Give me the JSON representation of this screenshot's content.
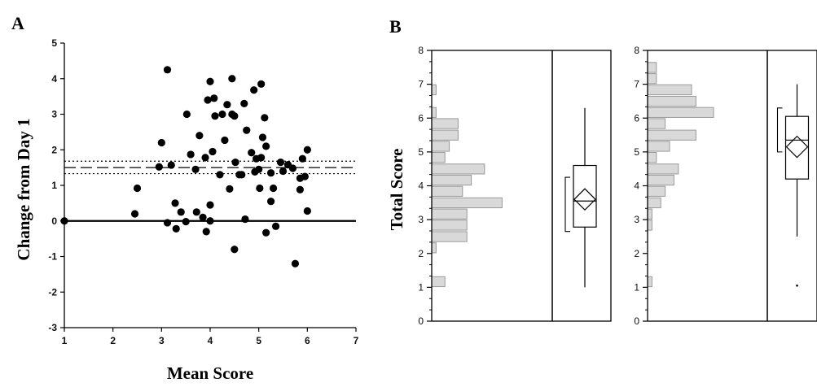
{
  "panel_labels": {
    "a": "A",
    "b": "B"
  },
  "chart_data": [
    {
      "type": "scatter",
      "panel": "A",
      "title": "",
      "xlabel": "Mean Score",
      "ylabel": "Change from Day 1",
      "xlim": [
        1,
        7
      ],
      "ylim": [
        -3,
        5
      ],
      "xticks": [
        "1",
        "2",
        "3",
        "4",
        "5",
        "6",
        "7"
      ],
      "yticks": [
        "-3",
        "-2",
        "-1",
        "0",
        "1",
        "2",
        "3",
        "4",
        "5"
      ],
      "reference_lines": {
        "zero": 0,
        "mean": 1.5,
        "ci_upper": 1.68,
        "ci_lower": 1.33
      },
      "points": [
        [
          1.0,
          0.0
        ],
        [
          2.45,
          0.2
        ],
        [
          2.5,
          0.92
        ],
        [
          2.95,
          1.52
        ],
        [
          3.0,
          2.2
        ],
        [
          3.12,
          4.25
        ],
        [
          3.12,
          -0.05
        ],
        [
          3.2,
          1.57
        ],
        [
          3.28,
          0.5
        ],
        [
          3.3,
          -0.22
        ],
        [
          3.4,
          0.25
        ],
        [
          3.5,
          -0.02
        ],
        [
          3.52,
          3.0
        ],
        [
          3.6,
          1.87
        ],
        [
          3.7,
          1.45
        ],
        [
          3.72,
          0.25
        ],
        [
          3.78,
          2.4
        ],
        [
          3.85,
          0.1
        ],
        [
          3.9,
          1.78
        ],
        [
          3.92,
          -0.3
        ],
        [
          3.95,
          3.4
        ],
        [
          4.0,
          3.92
        ],
        [
          4.0,
          0.45
        ],
        [
          4.0,
          0.0
        ],
        [
          4.05,
          1.95
        ],
        [
          4.08,
          3.45
        ],
        [
          4.1,
          2.95
        ],
        [
          4.2,
          1.3
        ],
        [
          4.25,
          3.0
        ],
        [
          4.3,
          2.27
        ],
        [
          4.35,
          3.27
        ],
        [
          4.4,
          0.9
        ],
        [
          4.45,
          3.0
        ],
        [
          4.5,
          -0.8
        ],
        [
          4.5,
          2.95
        ],
        [
          4.45,
          4.0
        ],
        [
          4.52,
          1.65
        ],
        [
          4.6,
          1.3
        ],
        [
          4.65,
          1.3
        ],
        [
          4.7,
          3.3
        ],
        [
          4.72,
          0.05
        ],
        [
          4.75,
          2.55
        ],
        [
          4.85,
          1.92
        ],
        [
          4.9,
          3.68
        ],
        [
          4.92,
          1.38
        ],
        [
          4.95,
          1.75
        ],
        [
          5.0,
          1.45
        ],
        [
          5.02,
          0.92
        ],
        [
          5.05,
          3.85
        ],
        [
          5.05,
          1.78
        ],
        [
          5.08,
          2.35
        ],
        [
          5.12,
          2.9
        ],
        [
          5.15,
          2.1
        ],
        [
          5.15,
          -0.33
        ],
        [
          5.25,
          0.55
        ],
        [
          5.25,
          1.35
        ],
        [
          5.3,
          0.92
        ],
        [
          5.35,
          -0.15
        ],
        [
          5.45,
          1.65
        ],
        [
          5.5,
          1.4
        ],
        [
          5.6,
          1.58
        ],
        [
          5.7,
          1.48
        ],
        [
          5.75,
          -1.2
        ],
        [
          5.85,
          0.88
        ],
        [
          5.85,
          1.2
        ],
        [
          5.9,
          1.75
        ],
        [
          5.95,
          1.25
        ],
        [
          6.0,
          0.28
        ],
        [
          6.0,
          2.0
        ]
      ]
    },
    {
      "type": "bar",
      "panel": "B-left",
      "title": "",
      "ylabel": "Total Score",
      "ylim": [
        0,
        8
      ],
      "yticks": [
        "0",
        "1",
        "2",
        "3",
        "4",
        "5",
        "6",
        "7",
        "8"
      ],
      "histogram": {
        "bin_width": 0.333,
        "bins": [
          {
            "y0": 1.0,
            "count": 3
          },
          {
            "y0": 2.0,
            "count": 1
          },
          {
            "y0": 2.33,
            "count": 8
          },
          {
            "y0": 2.67,
            "count": 8
          },
          {
            "y0": 3.0,
            "count": 8
          },
          {
            "y0": 3.33,
            "count": 16
          },
          {
            "y0": 3.67,
            "count": 7
          },
          {
            "y0": 4.0,
            "count": 9
          },
          {
            "y0": 4.33,
            "count": 12
          },
          {
            "y0": 4.67,
            "count": 3
          },
          {
            "y0": 5.0,
            "count": 4
          },
          {
            "y0": 5.33,
            "count": 6
          },
          {
            "y0": 5.67,
            "count": 6
          },
          {
            "y0": 6.0,
            "count": 1
          },
          {
            "y0": 6.67,
            "count": 1
          }
        ]
      },
      "boxplot": {
        "whisker_low": 1.0,
        "q1": 2.78,
        "median": 3.55,
        "q3": 4.6,
        "whisker_high": 6.3,
        "mean": 3.6,
        "ci": [
          2.65,
          4.25
        ],
        "outliers": []
      }
    },
    {
      "type": "bar",
      "panel": "B-right",
      "title": "",
      "ylim": [
        0,
        8
      ],
      "yticks": [
        "0",
        "1",
        "2",
        "3",
        "4",
        "5",
        "6",
        "7",
        "8"
      ],
      "histogram": {
        "bin_width": 0.333,
        "bins": [
          {
            "y0": 1.0,
            "count": 1
          },
          {
            "y0": 2.67,
            "count": 1
          },
          {
            "y0": 3.0,
            "count": 1
          },
          {
            "y0": 3.33,
            "count": 3
          },
          {
            "y0": 3.67,
            "count": 4
          },
          {
            "y0": 4.0,
            "count": 6
          },
          {
            "y0": 4.33,
            "count": 7
          },
          {
            "y0": 4.67,
            "count": 2
          },
          {
            "y0": 5.0,
            "count": 5
          },
          {
            "y0": 5.33,
            "count": 11
          },
          {
            "y0": 5.67,
            "count": 4
          },
          {
            "y0": 6.0,
            "count": 15
          },
          {
            "y0": 6.33,
            "count": 11
          },
          {
            "y0": 6.67,
            "count": 10
          },
          {
            "y0": 7.0,
            "count": 2
          },
          {
            "y0": 7.33,
            "count": 2
          }
        ]
      },
      "boxplot": {
        "whisker_low": 2.5,
        "q1": 4.2,
        "median": 5.35,
        "q3": 6.05,
        "whisker_high": 7.0,
        "mean": 5.15,
        "ci": [
          5.0,
          6.3
        ],
        "outliers": [
          1.05
        ]
      }
    }
  ]
}
